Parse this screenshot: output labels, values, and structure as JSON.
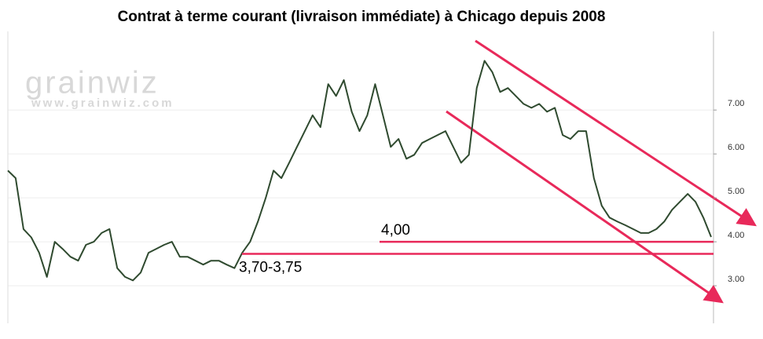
{
  "chart_data": {
    "type": "line",
    "title": "Contrat à terme courant (livraison immédiate) à Chicago depuis 2008",
    "watermark": {
      "logo": "grainwiz",
      "url": "www.grainwiz.com"
    },
    "values": [
      5.62,
      5.45,
      4.29,
      4.1,
      3.75,
      3.2,
      4.0,
      3.84,
      3.66,
      3.57,
      3.93,
      4.0,
      4.2,
      4.29,
      3.4,
      3.2,
      3.12,
      3.3,
      3.75,
      3.84,
      3.93,
      4.0,
      3.66,
      3.66,
      3.57,
      3.48,
      3.57,
      3.57,
      3.48,
      3.4,
      3.75,
      4.0,
      4.46,
      5.0,
      5.62,
      5.45,
      5.8,
      6.16,
      6.52,
      6.88,
      6.61,
      7.59,
      7.32,
      7.68,
      6.96,
      6.52,
      6.88,
      7.59,
      6.88,
      6.16,
      6.34,
      5.89,
      5.98,
      6.25,
      6.34,
      6.43,
      6.52,
      6.16,
      5.8,
      5.98,
      7.5,
      8.12,
      7.86,
      7.41,
      7.5,
      7.32,
      7.14,
      7.05,
      7.14,
      6.96,
      7.05,
      6.43,
      6.34,
      6.52,
      6.52,
      5.45,
      4.82,
      4.55,
      4.46,
      4.38,
      4.29,
      4.2,
      4.2,
      4.29,
      4.46,
      4.73,
      4.91,
      5.09,
      4.91,
      4.55,
      4.11
    ],
    "color": "#2f4a2f",
    "ylim": [
      2.18,
      8.79
    ],
    "yticks": [
      {
        "value": 3,
        "label": "3.00"
      },
      {
        "value": 4,
        "label": "4.00"
      },
      {
        "value": 5,
        "label": "5.00"
      },
      {
        "value": 6,
        "label": "6.00"
      },
      {
        "value": 7,
        "label": "7.00"
      }
    ],
    "grid": true,
    "levels": [
      {
        "value": 4,
        "label": "4,00",
        "color": "#e8295a"
      },
      {
        "value": 3.725,
        "label": "3,70-3,75",
        "color": "#e8295a"
      }
    ]
  }
}
